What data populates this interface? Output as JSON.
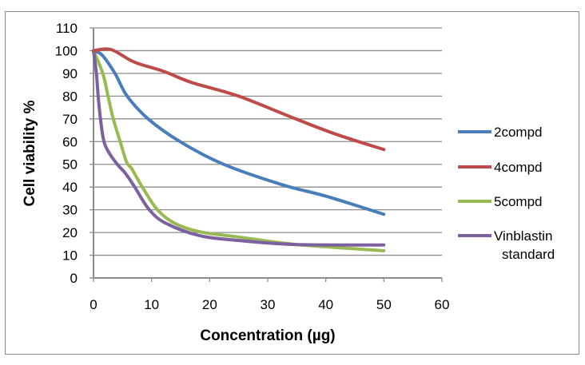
{
  "chart_data": {
    "type": "line",
    "title": "",
    "xlabel": "Concentration (µg)",
    "ylabel": "Cell viability %",
    "xlim": [
      0,
      60
    ],
    "ylim": [
      0,
      110
    ],
    "x_ticks": [
      0,
      10,
      20,
      30,
      40,
      50,
      60
    ],
    "y_ticks": [
      0,
      10,
      20,
      30,
      40,
      50,
      60,
      70,
      80,
      90,
      100,
      110
    ],
    "grid": "horizontal",
    "legend_position": "right",
    "series": [
      {
        "name": "2compd",
        "color": "#4a7ebb",
        "points": [
          [
            0,
            100
          ],
          [
            1.5,
            98
          ],
          [
            3.7,
            90
          ],
          [
            5.8,
            80
          ],
          [
            9.4,
            70
          ],
          [
            14.9,
            60
          ],
          [
            22.4,
            50
          ],
          [
            32.5,
            41
          ],
          [
            40,
            36
          ],
          [
            50,
            28
          ]
        ]
      },
      {
        "name": "4compd",
        "color": "#be4b48",
        "points": [
          [
            0,
            100
          ],
          [
            3,
            100.5
          ],
          [
            7,
            95
          ],
          [
            12,
            91
          ],
          [
            16.9,
            86
          ],
          [
            25,
            80
          ],
          [
            34.8,
            70
          ],
          [
            42,
            63
          ],
          [
            50,
            56.5
          ]
        ]
      },
      {
        "name": "5compd",
        "color": "#98b954",
        "points": [
          [
            0,
            100
          ],
          [
            1.6,
            90
          ],
          [
            2.5,
            80
          ],
          [
            3.4,
            70
          ],
          [
            4.6,
            60
          ],
          [
            5.7,
            51
          ],
          [
            6.6,
            48
          ],
          [
            8.4,
            40
          ],
          [
            11,
            30
          ],
          [
            14,
            24
          ],
          [
            18.3,
            20.3
          ],
          [
            25,
            18
          ],
          [
            35,
            14.7
          ],
          [
            50,
            12
          ]
        ]
      },
      {
        "name": "Vinblastin standard",
        "color": "#7d60a0",
        "points": [
          [
            0,
            100
          ],
          [
            0.5,
            90
          ],
          [
            0.8,
            80
          ],
          [
            1.2,
            70
          ],
          [
            1.8,
            60
          ],
          [
            2.7,
            55
          ],
          [
            4.1,
            50
          ],
          [
            5.5,
            46
          ],
          [
            7.1,
            40
          ],
          [
            9.6,
            30
          ],
          [
            12.5,
            24
          ],
          [
            18.3,
            18.6
          ],
          [
            25,
            16.5
          ],
          [
            35,
            14.7
          ],
          [
            50,
            14.5
          ]
        ]
      }
    ]
  }
}
